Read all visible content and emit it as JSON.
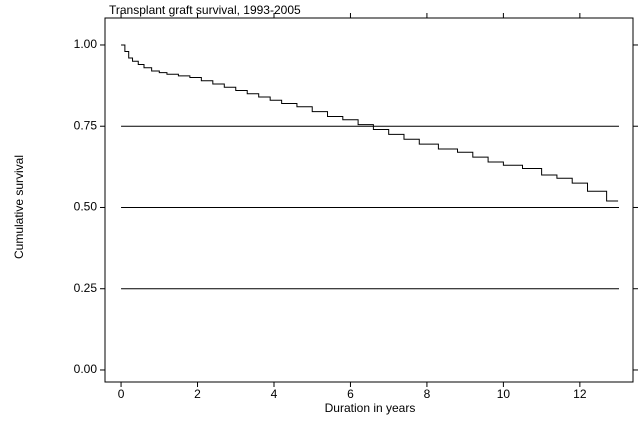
{
  "chart_data": {
    "type": "step",
    "title": "Transplant graft survival, 1993-2005",
    "x_label": "Duration in years",
    "y_label": "Cumulative survival",
    "xlim": [
      -0.42,
      13.39
    ],
    "ylim": [
      -0.037,
      1.083
    ],
    "xticks": [
      0,
      2,
      4,
      6,
      8,
      10,
      12
    ],
    "yticks": [
      {
        "value": 0,
        "label": "0.00"
      },
      {
        "value": 0.25,
        "label": "0.25"
      },
      {
        "value": 0.5,
        "label": "0.50"
      },
      {
        "value": 0.75,
        "label": "0.75"
      },
      {
        "value": 1,
        "label": "1.00"
      }
    ],
    "grid": true,
    "color": "#000000",
    "x": [
      0,
      0.1,
      0.2,
      0.3,
      0.45,
      0.6,
      0.8,
      1.0,
      1.2,
      1.5,
      1.8,
      2.1,
      2.4,
      2.7,
      3.0,
      3.3,
      3.6,
      3.9,
      4.2,
      4.6,
      5.0,
      5.4,
      5.8,
      6.2,
      6.6,
      7.0,
      7.4,
      7.8,
      8.3,
      8.8,
      9.2,
      9.6,
      10.0,
      10.5,
      11.0,
      11.4,
      11.8,
      12.2,
      12.7,
      13.0
    ],
    "values": [
      1.0,
      0.98,
      0.96,
      0.95,
      0.94,
      0.93,
      0.92,
      0.915,
      0.91,
      0.905,
      0.9,
      0.89,
      0.88,
      0.87,
      0.86,
      0.85,
      0.84,
      0.83,
      0.82,
      0.81,
      0.795,
      0.78,
      0.77,
      0.755,
      0.74,
      0.725,
      0.71,
      0.695,
      0.68,
      0.67,
      0.655,
      0.64,
      0.63,
      0.62,
      0.6,
      0.59,
      0.575,
      0.55,
      0.52,
      0.52
    ]
  }
}
